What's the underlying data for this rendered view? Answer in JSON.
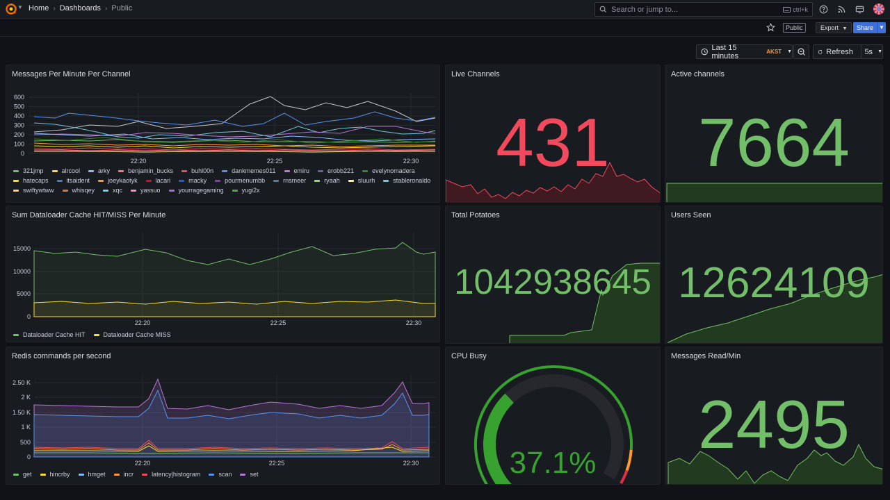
{
  "nav": {
    "breadcrumb": [
      "Home",
      "Dashboards",
      "Public"
    ],
    "search_placeholder": "Search or jump to...",
    "search_shortcut": "ctrl+k"
  },
  "toolbar": {
    "public_tag": "Public",
    "export_label": "Export",
    "share_label": "Share",
    "time_range": "Last 15 minutes",
    "timezone": "AKST",
    "refresh_label": "Refresh",
    "refresh_interval": "5s"
  },
  "colors": {
    "red": "#f2495c",
    "green": "#73bf69",
    "yellow": "#fade2a",
    "orange": "#ff9830"
  },
  "panels": {
    "messages": {
      "title": "Messages Per Minute Per Channel",
      "y_ticks": [
        "600",
        "500",
        "400",
        "300",
        "200",
        "100",
        "0"
      ],
      "x_ticks": [
        "22:20",
        "22:25",
        "22:30"
      ],
      "legend": [
        {
          "name": "321jmp",
          "color": "#73bf69"
        },
        {
          "name": "alrcool",
          "color": "#fade2a"
        },
        {
          "name": "arky",
          "color": "#8ab8ff"
        },
        {
          "name": "benjamin_bucks",
          "color": "#ff7383"
        },
        {
          "name": "buhl00n",
          "color": "#f2495c"
        },
        {
          "name": "dankmemes011",
          "color": "#5794f2"
        },
        {
          "name": "emiru",
          "color": "#b877d9"
        },
        {
          "name": "erobb221",
          "color": "#705da0"
        },
        {
          "name": "evelynomadera",
          "color": "#37872d"
        },
        {
          "name": "hatecaps",
          "color": "#fade2a"
        },
        {
          "name": "itsaident",
          "color": "#447ebc"
        },
        {
          "name": "joeykaotyk",
          "color": "#ff9830"
        },
        {
          "name": "lacari",
          "color": "#c4162a"
        },
        {
          "name": "macky",
          "color": "#1f60c4"
        },
        {
          "name": "pourmenumbb",
          "color": "#8f3bb8"
        },
        {
          "name": "rnsmeer",
          "color": "#5a7b9c"
        },
        {
          "name": "ryaah",
          "color": "#96d98d"
        },
        {
          "name": "sluurh",
          "color": "#fff899"
        },
        {
          "name": "stableronaldo",
          "color": "#73c7d9"
        },
        {
          "name": "swiftywtww",
          "color": "#ffcb7d"
        },
        {
          "name": "whisqey",
          "color": "#e0752d"
        },
        {
          "name": "xqc",
          "color": "#6ed0e0"
        },
        {
          "name": "yassuo",
          "color": "#f48fb1"
        },
        {
          "name": "yourragegaming",
          "color": "#9b6bd6"
        },
        {
          "name": "yugi2x",
          "color": "#56a64b"
        }
      ]
    },
    "live": {
      "title": "Live Channels",
      "value": "431"
    },
    "active": {
      "title": "Active channels",
      "value": "7664"
    },
    "cache": {
      "title": "Sum Dataloader Cache HIT/MISS Per Minute",
      "y_ticks": [
        "15000",
        "10000",
        "5000",
        "0"
      ],
      "x_ticks": [
        "22:20",
        "22:25",
        "22:30"
      ],
      "legend": [
        {
          "name": "Dataloader Cache HIT",
          "color": "#73bf69"
        },
        {
          "name": "Dataloader Cache MISS",
          "color": "#fade2a"
        }
      ]
    },
    "potatoes": {
      "title": "Total Potatoes",
      "value": "1042938645"
    },
    "users": {
      "title": "Users Seen",
      "value": "12624109"
    },
    "redis": {
      "title": "Redis commands per second",
      "y_ticks": [
        "2.50 K",
        "2 K",
        "1.50 K",
        "1 K",
        "500",
        "0"
      ],
      "x_ticks": [
        "22:20",
        "22:25",
        "22:30"
      ],
      "legend": [
        {
          "name": "get",
          "color": "#73bf69"
        },
        {
          "name": "hincrby",
          "color": "#fade2a"
        },
        {
          "name": "hmget",
          "color": "#8ab8ff"
        },
        {
          "name": "incr",
          "color": "#ff9830"
        },
        {
          "name": "latency|histogram",
          "color": "#f2495c"
        },
        {
          "name": "scan",
          "color": "#5794f2"
        },
        {
          "name": "set",
          "color": "#b877d9"
        }
      ]
    },
    "cpu": {
      "title": "CPU Busy",
      "value": "37.1%",
      "percent": 37.1
    },
    "msgread": {
      "title": "Messages Read/Min",
      "value": "2495"
    }
  }
}
